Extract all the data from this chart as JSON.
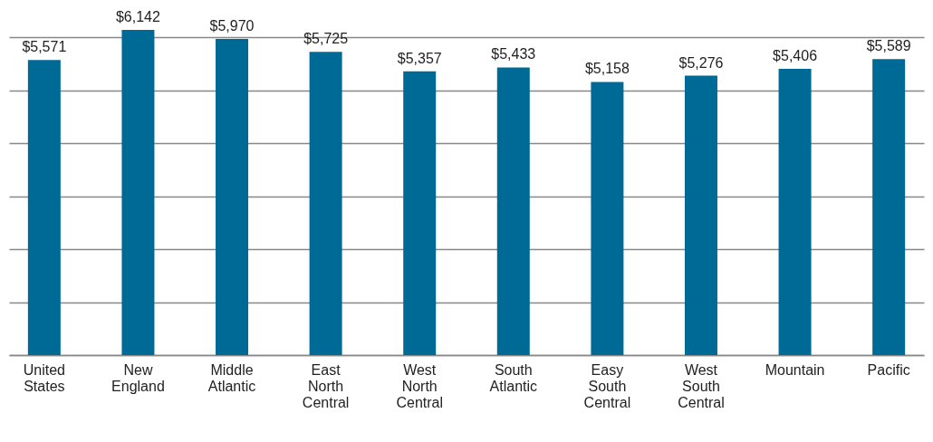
{
  "chart_data": {
    "type": "bar",
    "categories": [
      "United States",
      "New England",
      "Middle Atlantic",
      "East North Central",
      "West North Central",
      "South Atlantic",
      "Easy South Central",
      "West South Central",
      "Mountain",
      "Pacific"
    ],
    "values": [
      5571,
      6142,
      5970,
      5725,
      5357,
      5433,
      5158,
      5276,
      5406,
      5589
    ],
    "value_labels": [
      "$5,571",
      "$6,142",
      "$5,970",
      "$5,725",
      "$5,357",
      "$5,433",
      "$5,158",
      "$5,276",
      "$5,406",
      "$5,589"
    ],
    "color": "#006a96",
    "grid": "y",
    "tick_labels": "x"
  }
}
